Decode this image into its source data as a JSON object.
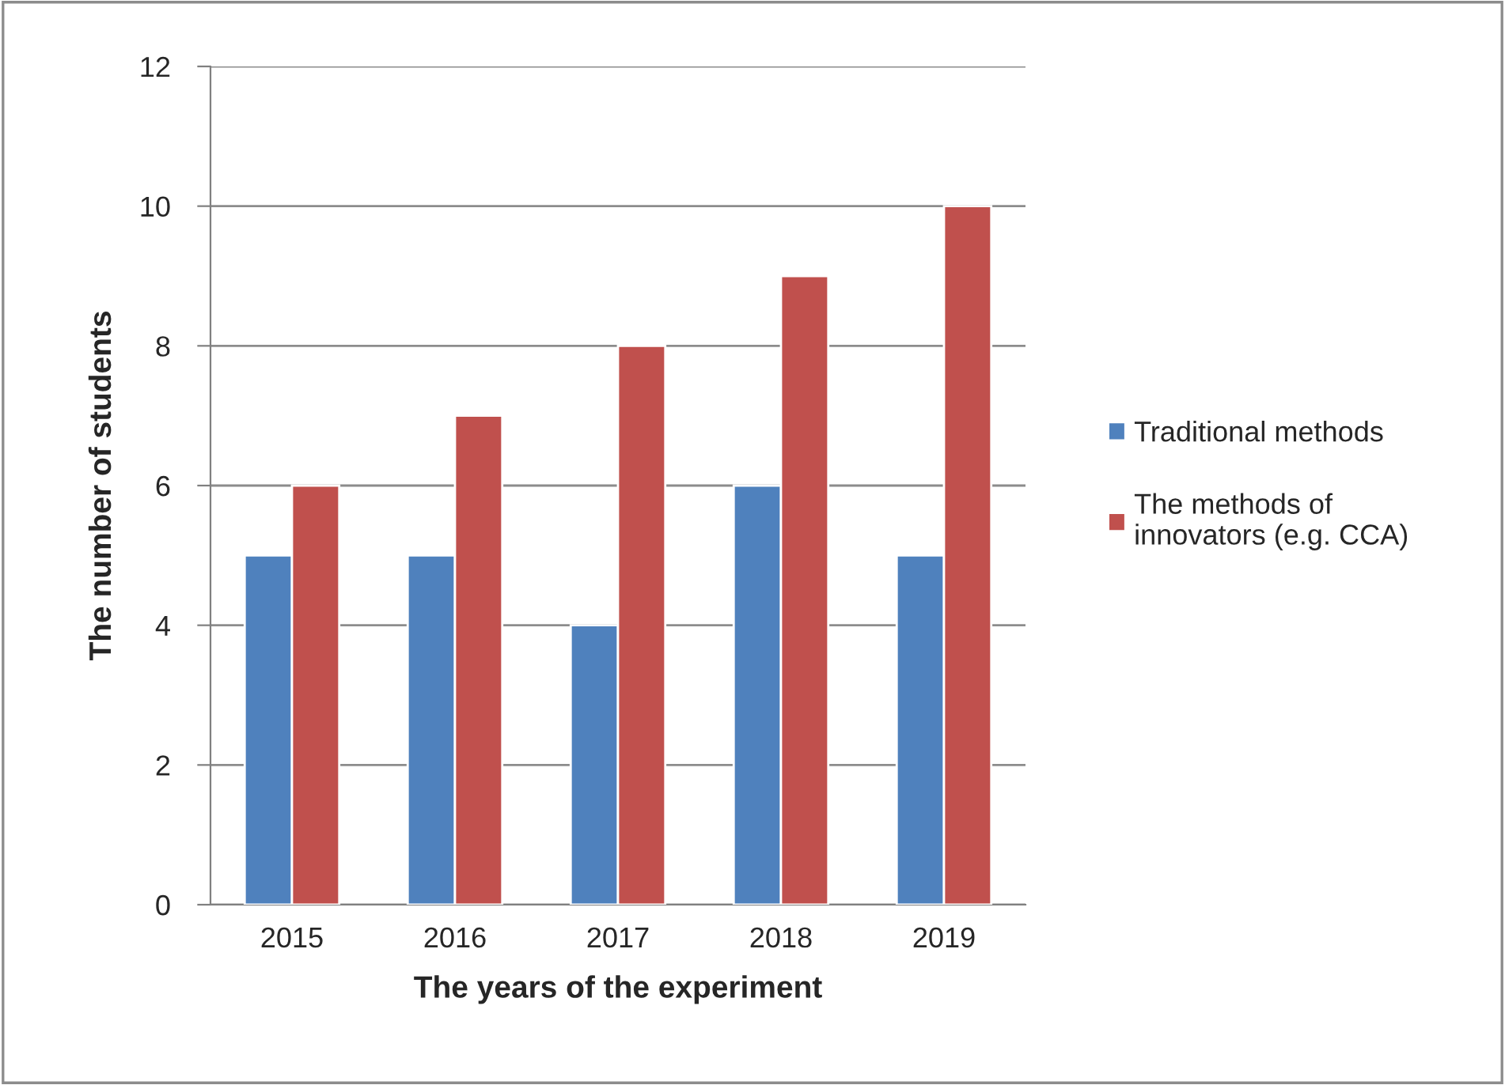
{
  "chart_data": {
    "type": "bar",
    "xlabel": "The years of the experiment",
    "ylabel": "The number of students",
    "categories": [
      "2015",
      "2016",
      "2017",
      "2018",
      "2019"
    ],
    "series": [
      {
        "name": "Traditional methods",
        "color": "#4f81bd",
        "values": [
          5,
          5,
          4,
          6,
          5
        ]
      },
      {
        "name": "The methods of\ninnovators (e.g. CCA)",
        "color": "#c0504d",
        "values": [
          6,
          7,
          8,
          9,
          10
        ]
      }
    ],
    "ylim": [
      0,
      12
    ],
    "yticks": [
      0,
      2,
      4,
      6,
      8,
      10,
      12
    ],
    "grid": "y",
    "legend": "right"
  }
}
